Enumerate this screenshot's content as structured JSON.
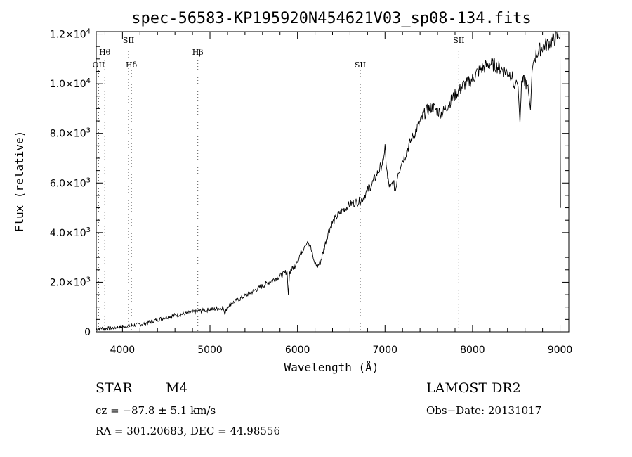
{
  "chart_data": {
    "type": "line",
    "title": "spec-56583-KP195920N454621V03_sp08-134.fits",
    "xlabel": "Wavelength (Å)",
    "ylabel": "Flux (relative)",
    "xlim": [
      3700,
      9100
    ],
    "ylim": [
      0,
      12100
    ],
    "x_ticks": [
      4000,
      5000,
      6000,
      7000,
      8000,
      9000
    ],
    "y_ticks": [
      {
        "value": 0,
        "mantissa": "0",
        "exp": ""
      },
      {
        "value": 2000,
        "mantissa": "2.0×10",
        "exp": "3"
      },
      {
        "value": 4000,
        "mantissa": "4.0×10",
        "exp": "3"
      },
      {
        "value": 6000,
        "mantissa": "6.0×10",
        "exp": "3"
      },
      {
        "value": 8000,
        "mantissa": "8.0×10",
        "exp": "3"
      },
      {
        "value": 10000,
        "mantissa": "1.0×10",
        "exp": "4"
      },
      {
        "value": 12000,
        "mantissa": "1.2×10",
        "exp": "4"
      }
    ],
    "grid": false,
    "line_markers": [
      {
        "label": "OII",
        "wavelength": 3727
      },
      {
        "label": "Hθ",
        "wavelength": 3798
      },
      {
        "label": "SII",
        "wavelength": 4069
      },
      {
        "label": "Hδ",
        "wavelength": 4102
      },
      {
        "label": "Hβ",
        "wavelength": 4861
      },
      {
        "label": "SII",
        "wavelength": 6717
      },
      {
        "label": "SII",
        "wavelength": 7843
      }
    ],
    "series": [
      {
        "x": [
          3700,
          3750,
          3800,
          3850,
          3900,
          3950,
          4000,
          4050,
          4100,
          4150,
          4200,
          4250,
          4300,
          4350,
          4400,
          4450,
          4500,
          4550,
          4600,
          4650,
          4700,
          4750,
          4800,
          4850,
          4900,
          4950,
          5000,
          5050,
          5100,
          5150,
          5170,
          5200,
          5250,
          5300,
          5350,
          5400,
          5450,
          5500,
          5550,
          5600,
          5650,
          5700,
          5750,
          5800,
          5850,
          5880,
          5895,
          5910,
          5940,
          5980,
          6000,
          6040,
          6080,
          6100,
          6120,
          6150,
          6180,
          6200,
          6230,
          6260,
          6300,
          6330,
          6360,
          6400,
          6450,
          6500,
          6550,
          6600,
          6650,
          6700,
          6750,
          6800,
          6850,
          6900,
          6950,
          6980,
          7000,
          7030,
          7060,
          7090,
          7120,
          7150,
          7180,
          7200,
          7230,
          7260,
          7300,
          7350,
          7400,
          7450,
          7500,
          7550,
          7600,
          7650,
          7700,
          7750,
          7800,
          7850,
          7900,
          7950,
          8000,
          8050,
          8100,
          8150,
          8200,
          8250,
          8300,
          8350,
          8400,
          8450,
          8480,
          8500,
          8520,
          8542,
          8560,
          8600,
          8640,
          8662,
          8680,
          8700,
          8750,
          8800,
          8850,
          8900,
          8950,
          8980,
          9000,
          9005
        ],
        "y": [
          100,
          150,
          130,
          140,
          160,
          180,
          210,
          230,
          250,
          280,
          300,
          330,
          390,
          440,
          490,
          540,
          590,
          630,
          670,
          700,
          730,
          760,
          790,
          820,
          850,
          870,
          900,
          920,
          940,
          980,
          700,
          1050,
          1150,
          1250,
          1350,
          1450,
          1550,
          1650,
          1750,
          1850,
          1950,
          2050,
          2150,
          2250,
          2350,
          2450,
          1500,
          2400,
          2550,
          2700,
          2900,
          3200,
          3450,
          3500,
          3700,
          3400,
          2950,
          2750,
          2650,
          2800,
          3300,
          3750,
          4100,
          4400,
          4650,
          4850,
          5000,
          5150,
          5200,
          5250,
          5400,
          5700,
          5950,
          6300,
          6650,
          6900,
          7350,
          6150,
          5750,
          6050,
          5700,
          6500,
          6650,
          6900,
          7100,
          7400,
          7750,
          8100,
          8450,
          8800,
          9000,
          9050,
          8900,
          8800,
          9050,
          9300,
          9550,
          9750,
          9950,
          10050,
          10200,
          10450,
          10600,
          10700,
          10800,
          10750,
          10650,
          10550,
          10450,
          10350,
          9800,
          10150,
          9900,
          8400,
          10000,
          10150,
          9650,
          8950,
          10500,
          11000,
          11300,
          11500,
          11600,
          11700,
          11850,
          11900,
          11800,
          5000
        ]
      }
    ]
  },
  "info": {
    "class_label": "STAR",
    "subclass_label": "M4",
    "survey": "LAMOST DR2",
    "cz": "cz = −87.8 ± 5.1 km/s",
    "obs_date": "Obs−Date: 20131017",
    "coords": "RA = 301.20683, DEC =  44.98556"
  }
}
